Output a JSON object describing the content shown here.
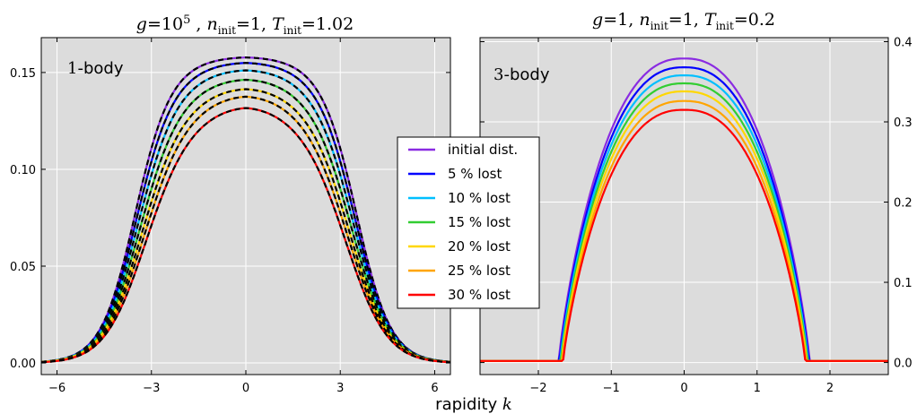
{
  "figure": {
    "xlabel": "rapidity",
    "xlabel_var": "k"
  },
  "legend": {
    "entries": [
      {
        "label": "initial dist.",
        "color": "#8a2be2"
      },
      {
        "label": "5 % lost",
        "color": "#0000ff"
      },
      {
        "label": "10 % lost",
        "color": "#00bfff"
      },
      {
        "label": "15 % lost",
        "color": "#32cd32"
      },
      {
        "label": "20 % lost",
        "color": "#ffd700"
      },
      {
        "label": "25 % lost",
        "color": "#ffa500"
      },
      {
        "label": "30 % lost",
        "color": "#ff0000"
      }
    ]
  },
  "chart_data": [
    {
      "type": "line",
      "title": {
        "g_base": "10",
        "g_exp": "5",
        "n_value": "1",
        "T_value": "1.02"
      },
      "annotation": {
        "number": "1",
        "text": "-body"
      },
      "xlim": [
        -6.5,
        6.5
      ],
      "ylim": [
        -0.006,
        0.168
      ],
      "xticks": [
        -6,
        -3,
        0,
        3,
        6
      ],
      "xtick_labels": [
        "−6",
        "−3",
        "0",
        "3",
        "6"
      ],
      "yticks": [
        0.0,
        0.05,
        0.1,
        0.15
      ],
      "ytick_labels": [
        "0.00",
        "0.05",
        "0.10",
        "0.15"
      ],
      "yaxis_side": "left",
      "grid": true,
      "background": "#dcdcdc",
      "dashed_overlay": true,
      "series": [
        {
          "name": "initial dist.",
          "color": "#8a2be2",
          "peak": 0.158
        },
        {
          "name": "5 % lost",
          "color": "#0000ff",
          "peak": 0.155
        },
        {
          "name": "10 % lost",
          "color": "#00bfff",
          "peak": 0.151
        },
        {
          "name": "15 % lost",
          "color": "#32cd32",
          "peak": 0.146
        },
        {
          "name": "20 % lost",
          "color": "#ffd700",
          "peak": 0.141
        },
        {
          "name": "25 % lost",
          "color": "#ffa500",
          "peak": 0.137
        },
        {
          "name": "30 % lost",
          "color": "#ff0000",
          "peak": 0.131
        }
      ]
    },
    {
      "type": "line",
      "title": {
        "g_value": "1",
        "n_value": "1",
        "T_value": "0.2"
      },
      "annotation": {
        "number": "3",
        "text": "-body"
      },
      "xlim": [
        -2.8,
        2.8
      ],
      "ylim": [
        -0.015,
        0.405
      ],
      "xticks": [
        -2,
        -1,
        0,
        1,
        2
      ],
      "xtick_labels": [
        "−2",
        "−1",
        "0",
        "1",
        "2"
      ],
      "yticks": [
        0.0,
        0.1,
        0.2,
        0.3,
        0.4
      ],
      "ytick_labels": [
        "0.0",
        "0.1",
        "0.2",
        "0.3",
        "0.4"
      ],
      "yaxis_side": "right",
      "grid": true,
      "background": "#dcdcdc",
      "dashed_overlay": false,
      "series": [
        {
          "name": "initial dist.",
          "color": "#8a2be2",
          "peak": 0.377
        },
        {
          "name": "5 % lost",
          "color": "#0000ff",
          "peak": 0.366
        },
        {
          "name": "10 % lost",
          "color": "#00bfff",
          "peak": 0.356
        },
        {
          "name": "15 % lost",
          "color": "#32cd32",
          "peak": 0.346
        },
        {
          "name": "20 % lost",
          "color": "#ffd700",
          "peak": 0.336
        },
        {
          "name": "25 % lost",
          "color": "#ffa500",
          "peak": 0.324
        },
        {
          "name": "30 % lost",
          "color": "#ff0000",
          "peak": 0.313
        }
      ]
    }
  ]
}
